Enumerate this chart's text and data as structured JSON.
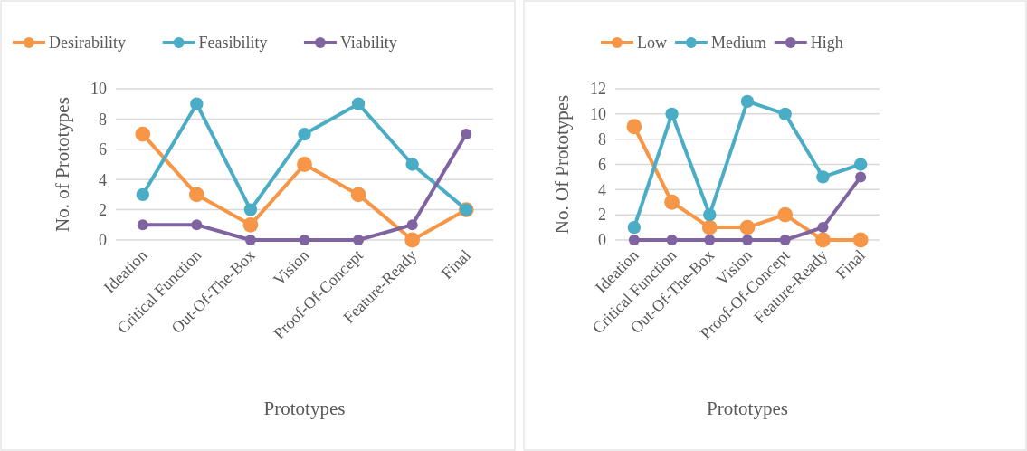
{
  "chart_data": [
    {
      "type": "line",
      "xlabel": "Prototypes",
      "ylabel": "No. of Prototypes",
      "categories": [
        "Ideation",
        "Critical Function",
        "Out-Of-The-Box",
        "Vision",
        "Proof-Of-Concept",
        "Feature-Ready",
        "Final"
      ],
      "series": [
        {
          "name": "Desirability",
          "color": "#f79646",
          "values": [
            7,
            3,
            1,
            5,
            3,
            0,
            2
          ]
        },
        {
          "name": "Feasibility",
          "color": "#4bacc6",
          "values": [
            3,
            9,
            2,
            7,
            9,
            5,
            2
          ]
        },
        {
          "name": "Viability",
          "color": "#8064a2",
          "values": [
            1,
            1,
            0,
            0,
            0,
            1,
            7
          ]
        }
      ],
      "ylim": [
        0,
        10
      ],
      "yticks": [
        0,
        2,
        4,
        6,
        8,
        10
      ],
      "grid": "y",
      "legend": "top",
      "marker": "circle",
      "line_style": "solid"
    },
    {
      "type": "line",
      "xlabel": "Prototypes",
      "ylabel": "No. Of Prototypes",
      "categories": [
        "Ideation",
        "Critical Function",
        "Out-Of-The-Box",
        "Vision",
        "Proof-Of-Concept",
        "Feature-Ready",
        "Final"
      ],
      "series": [
        {
          "name": "Low",
          "color": "#f79646",
          "values": [
            9,
            3,
            1,
            1,
            2,
            0,
            0
          ]
        },
        {
          "name": "Medium",
          "color": "#4bacc6",
          "values": [
            1,
            10,
            2,
            11,
            10,
            5,
            6
          ]
        },
        {
          "name": "High",
          "color": "#8064a2",
          "values": [
            0,
            0,
            0,
            0,
            0,
            1,
            5
          ]
        }
      ],
      "ylim": [
        0,
        12
      ],
      "yticks": [
        0,
        2,
        4,
        6,
        8,
        10,
        12
      ],
      "grid": "y",
      "legend": "top",
      "marker": "circle",
      "line_style": "solid"
    }
  ]
}
